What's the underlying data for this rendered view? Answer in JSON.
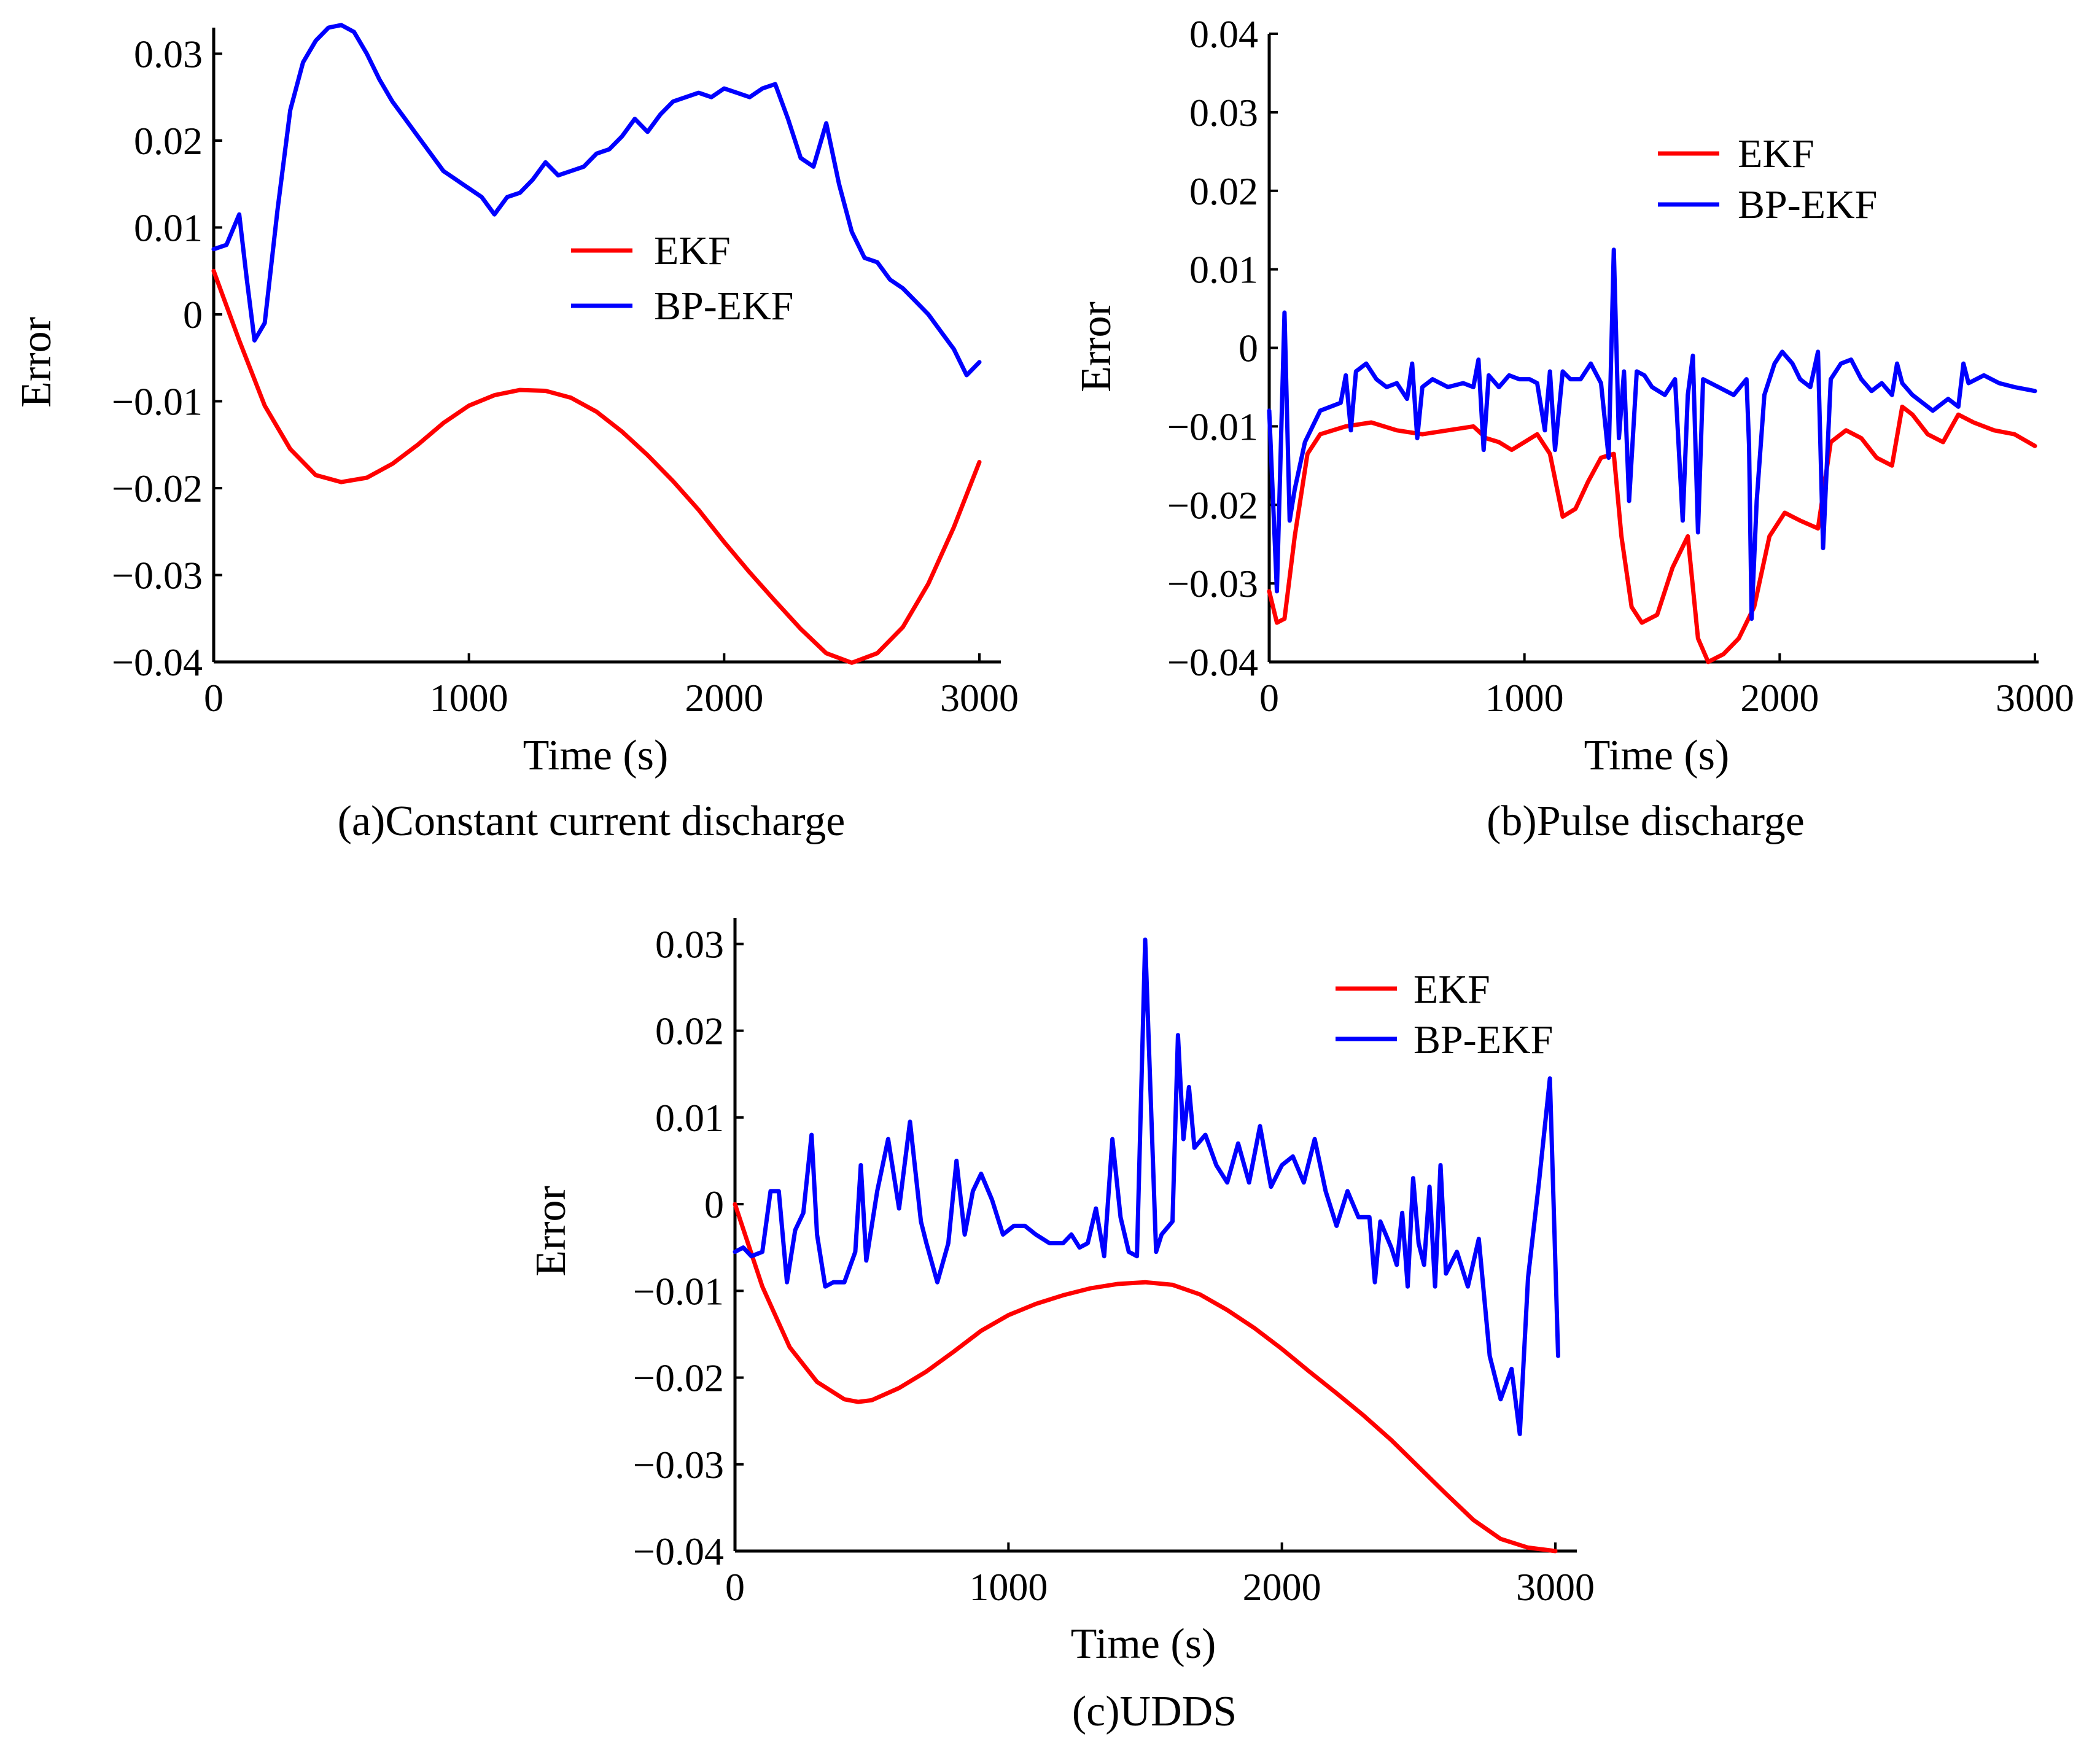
{
  "chart_data": [
    {
      "type": "line",
      "caption": "(a)Constant current discharge",
      "xlabel": "Time (s)",
      "ylabel": "Error",
      "xlim": [
        0,
        3000
      ],
      "ylim": [
        -0.04,
        0.033
      ],
      "xticks": [
        0,
        1000,
        2000,
        3000
      ],
      "xtick_labels": [
        "0",
        "1000",
        "2000",
        "3000"
      ],
      "yticks": [
        0.03,
        0.02,
        0.01,
        0,
        -0.01,
        -0.02,
        -0.03,
        -0.04
      ],
      "ytick_labels": [
        "0.03",
        "0.02",
        "0.01",
        "0",
        "−0.01",
        "−0.02",
        "−0.03",
        "−0.04"
      ],
      "legend_position": "center-right",
      "series": [
        {
          "name": "EKF",
          "color": "#ff0000",
          "x": [
            0,
            100,
            200,
            300,
            400,
            500,
            600,
            700,
            800,
            900,
            1000,
            1100,
            1200,
            1300,
            1400,
            1500,
            1600,
            1700,
            1800,
            1900,
            2000,
            2100,
            2200,
            2300,
            2400,
            2500,
            2600,
            2700,
            2800,
            2900,
            3000
          ],
          "y": [
            0.005,
            -0.003,
            -0.0105,
            -0.0155,
            -0.0185,
            -0.0193,
            -0.0188,
            -0.0172,
            -0.015,
            -0.0125,
            -0.0105,
            -0.0093,
            -0.0087,
            -0.0088,
            -0.0096,
            -0.0112,
            -0.0135,
            -0.0162,
            -0.0192,
            -0.0225,
            -0.0262,
            -0.0297,
            -0.033,
            -0.0362,
            -0.039,
            -0.0401,
            -0.039,
            -0.036,
            -0.031,
            -0.0245,
            -0.017
          ]
        },
        {
          "name": "BP-EKF",
          "color": "#0000ff",
          "x": [
            0,
            50,
            100,
            130,
            160,
            200,
            250,
            300,
            350,
            400,
            450,
            500,
            550,
            600,
            650,
            700,
            750,
            800,
            850,
            900,
            950,
            1000,
            1050,
            1100,
            1150,
            1200,
            1250,
            1300,
            1350,
            1400,
            1450,
            1500,
            1550,
            1600,
            1650,
            1700,
            1750,
            1800,
            1850,
            1900,
            1950,
            2000,
            2050,
            2100,
            2150,
            2200,
            2250,
            2300,
            2350,
            2400,
            2450,
            2500,
            2550,
            2600,
            2650,
            2700,
            2750,
            2800,
            2850,
            2900,
            2950,
            3000
          ],
          "y": [
            0.0075,
            0.008,
            0.0115,
            0.004,
            -0.003,
            -0.001,
            0.012,
            0.0235,
            0.029,
            0.0315,
            0.033,
            0.0333,
            0.0325,
            0.03,
            0.027,
            0.0245,
            0.0225,
            0.0205,
            0.0185,
            0.0165,
            0.0155,
            0.0145,
            0.0135,
            0.0115,
            0.0135,
            0.014,
            0.0155,
            0.0175,
            0.016,
            0.0165,
            0.017,
            0.0185,
            0.019,
            0.0205,
            0.0225,
            0.021,
            0.023,
            0.0245,
            0.025,
            0.0255,
            0.025,
            0.026,
            0.0255,
            0.025,
            0.026,
            0.0265,
            0.0225,
            0.018,
            0.017,
            0.022,
            0.015,
            0.0095,
            0.0065,
            0.006,
            0.004,
            0.003,
            0.0015,
            0.0,
            -0.002,
            -0.004,
            -0.007,
            -0.0055
          ]
        }
      ]
    },
    {
      "type": "line",
      "caption": "(b)Pulse discharge",
      "xlabel": "Time (s)",
      "ylabel": "Error",
      "xlim": [
        0,
        3000
      ],
      "ylim": [
        -0.04,
        0.04
      ],
      "xticks": [
        0,
        1000,
        2000,
        3000
      ],
      "xtick_labels": [
        "0",
        "1000",
        "2000",
        "3000"
      ],
      "yticks": [
        0.04,
        0.03,
        0.02,
        0.01,
        0,
        -0.01,
        -0.02,
        -0.03,
        -0.04
      ],
      "ytick_labels": [
        "0.04",
        "0.03",
        "0.02",
        "0.01",
        "0",
        "−0.01",
        "−0.02",
        "−0.03",
        "−0.04"
      ],
      "legend_position": "top-right",
      "series": [
        {
          "name": "EKF",
          "color": "#ff0000",
          "x": [
            0,
            30,
            60,
            100,
            150,
            200,
            300,
            400,
            500,
            600,
            700,
            800,
            850,
            900,
            950,
            1000,
            1050,
            1100,
            1150,
            1200,
            1250,
            1300,
            1350,
            1380,
            1420,
            1460,
            1520,
            1580,
            1640,
            1680,
            1720,
            1780,
            1840,
            1900,
            1960,
            2020,
            2080,
            2150,
            2200,
            2260,
            2320,
            2380,
            2440,
            2480,
            2520,
            2580,
            2640,
            2700,
            2760,
            2840,
            2920,
            3000
          ],
          "y": [
            -0.031,
            -0.035,
            -0.0345,
            -0.024,
            -0.0135,
            -0.011,
            -0.01,
            -0.0095,
            -0.0105,
            -0.011,
            -0.0105,
            -0.01,
            -0.0115,
            -0.012,
            -0.013,
            -0.012,
            -0.011,
            -0.0135,
            -0.0215,
            -0.0205,
            -0.017,
            -0.014,
            -0.0135,
            -0.024,
            -0.033,
            -0.035,
            -0.034,
            -0.028,
            -0.024,
            -0.037,
            -0.04,
            -0.039,
            -0.037,
            -0.033,
            -0.024,
            -0.021,
            -0.022,
            -0.023,
            -0.012,
            -0.0105,
            -0.0115,
            -0.014,
            -0.015,
            -0.0075,
            -0.0085,
            -0.011,
            -0.012,
            -0.0085,
            -0.0095,
            -0.0105,
            -0.011,
            -0.0125
          ]
        },
        {
          "name": "BP-EKF",
          "color": "#0000ff",
          "x": [
            0,
            30,
            60,
            80,
            100,
            140,
            200,
            280,
            300,
            320,
            340,
            380,
            420,
            460,
            500,
            540,
            560,
            580,
            600,
            640,
            700,
            760,
            800,
            820,
            840,
            860,
            900,
            940,
            980,
            1020,
            1050,
            1080,
            1100,
            1120,
            1150,
            1180,
            1220,
            1260,
            1300,
            1330,
            1350,
            1370,
            1390,
            1410,
            1440,
            1470,
            1500,
            1550,
            1590,
            1620,
            1640,
            1660,
            1680,
            1700,
            1760,
            1820,
            1870,
            1880,
            1890,
            1910,
            1940,
            1980,
            2010,
            2050,
            2080,
            2120,
            2150,
            2170,
            2200,
            2240,
            2280,
            2320,
            2360,
            2400,
            2440,
            2460,
            2480,
            2520,
            2560,
            2600,
            2660,
            2700,
            2720,
            2740,
            2800,
            2860,
            2920,
            3000
          ],
          "y": [
            -0.008,
            -0.031,
            0.0045,
            -0.022,
            -0.018,
            -0.012,
            -0.008,
            -0.007,
            -0.0035,
            -0.0105,
            -0.003,
            -0.002,
            -0.004,
            -0.005,
            -0.0045,
            -0.0065,
            -0.002,
            -0.0115,
            -0.005,
            -0.004,
            -0.005,
            -0.0045,
            -0.005,
            -0.0015,
            -0.013,
            -0.0035,
            -0.005,
            -0.0035,
            -0.004,
            -0.004,
            -0.0045,
            -0.0105,
            -0.003,
            -0.013,
            -0.003,
            -0.004,
            -0.004,
            -0.002,
            -0.0045,
            -0.014,
            0.0125,
            -0.0115,
            -0.003,
            -0.0195,
            -0.003,
            -0.0035,
            -0.005,
            -0.006,
            -0.004,
            -0.022,
            -0.006,
            -0.001,
            -0.0235,
            -0.004,
            -0.005,
            -0.006,
            -0.004,
            -0.0125,
            -0.0345,
            -0.0195,
            -0.006,
            -0.002,
            -0.0005,
            -0.002,
            -0.004,
            -0.005,
            -0.0005,
            -0.0255,
            -0.004,
            -0.002,
            -0.0015,
            -0.004,
            -0.0055,
            -0.0045,
            -0.006,
            -0.002,
            -0.0045,
            -0.006,
            -0.007,
            -0.008,
            -0.0065,
            -0.0075,
            -0.002,
            -0.0045,
            -0.0035,
            -0.0045,
            -0.005,
            -0.0055
          ]
        }
      ]
    },
    {
      "type": "line",
      "caption": "(c)UDDS",
      "xlabel": "Time (s)",
      "ylabel": "Error",
      "xlim": [
        0,
        3000
      ],
      "ylim": [
        -0.04,
        0.033
      ],
      "xticks": [
        0,
        1000,
        2000,
        3000
      ],
      "xtick_labels": [
        "0",
        "1000",
        "2000",
        "3000"
      ],
      "yticks": [
        0.03,
        0.02,
        0.01,
        0,
        -0.01,
        -0.02,
        -0.03,
        -0.04
      ],
      "ytick_labels": [
        "0.03",
        "0.02",
        "0.01",
        "0",
        "−0.01",
        "−0.02",
        "−0.03",
        "−0.04"
      ],
      "legend_position": "top-right",
      "series": [
        {
          "name": "EKF",
          "color": "#ff0000",
          "x": [
            0,
            100,
            200,
            300,
            400,
            450,
            500,
            600,
            700,
            800,
            900,
            1000,
            1100,
            1200,
            1300,
            1400,
            1500,
            1600,
            1700,
            1800,
            1900,
            2000,
            2100,
            2200,
            2300,
            2400,
            2500,
            2600,
            2700,
            2800,
            2900,
            3000
          ],
          "y": [
            0.0,
            -0.0095,
            -0.0165,
            -0.0205,
            -0.0225,
            -0.0228,
            -0.0226,
            -0.0212,
            -0.0193,
            -0.017,
            -0.0146,
            -0.0128,
            -0.0115,
            -0.0105,
            -0.0097,
            -0.0092,
            -0.009,
            -0.0093,
            -0.0104,
            -0.0122,
            -0.0143,
            -0.0167,
            -0.0193,
            -0.0218,
            -0.0244,
            -0.0272,
            -0.0303,
            -0.0334,
            -0.0364,
            -0.0386,
            -0.0396,
            -0.04
          ]
        },
        {
          "name": "BP-EKF",
          "color": "#0000ff",
          "x": [
            0,
            30,
            60,
            100,
            130,
            160,
            190,
            220,
            250,
            280,
            300,
            330,
            360,
            400,
            440,
            460,
            480,
            520,
            560,
            600,
            640,
            680,
            700,
            740,
            780,
            810,
            840,
            870,
            900,
            940,
            980,
            1020,
            1060,
            1100,
            1150,
            1200,
            1230,
            1260,
            1290,
            1320,
            1350,
            1380,
            1410,
            1440,
            1470,
            1500,
            1540,
            1560,
            1600,
            1620,
            1640,
            1660,
            1680,
            1720,
            1760,
            1800,
            1840,
            1880,
            1920,
            1960,
            2000,
            2040,
            2080,
            2120,
            2160,
            2200,
            2240,
            2280,
            2320,
            2340,
            2360,
            2380,
            2400,
            2420,
            2440,
            2460,
            2480,
            2500,
            2520,
            2540,
            2560,
            2580,
            2600,
            2640,
            2680,
            2720,
            2760,
            2800,
            2840,
            2870,
            2900,
            2940,
            2980,
            3010
          ],
          "y": [
            -0.0055,
            -0.005,
            -0.006,
            -0.0055,
            0.0015,
            0.0015,
            -0.009,
            -0.003,
            -0.001,
            0.008,
            -0.0035,
            -0.0095,
            -0.009,
            -0.009,
            -0.0055,
            0.0045,
            -0.0065,
            0.0015,
            0.0075,
            -0.0005,
            0.0095,
            -0.002,
            -0.0045,
            -0.009,
            -0.0045,
            0.005,
            -0.0035,
            0.0015,
            0.0035,
            0.0005,
            -0.0035,
            -0.0025,
            -0.0025,
            -0.0035,
            -0.0045,
            -0.0045,
            -0.0035,
            -0.005,
            -0.0045,
            -0.0005,
            -0.006,
            0.0075,
            -0.0015,
            -0.0055,
            -0.006,
            0.0305,
            -0.0055,
            -0.0035,
            -0.002,
            0.0195,
            0.0075,
            0.0135,
            0.0065,
            0.008,
            0.0045,
            0.0025,
            0.007,
            0.0025,
            0.009,
            0.002,
            0.0045,
            0.0055,
            0.0025,
            0.0075,
            0.0015,
            -0.0025,
            0.0015,
            -0.0015,
            -0.0015,
            -0.009,
            -0.002,
            -0.0035,
            -0.005,
            -0.007,
            -0.001,
            -0.0095,
            0.003,
            -0.0045,
            -0.007,
            0.002,
            -0.0095,
            0.0045,
            -0.008,
            -0.0055,
            -0.0095,
            -0.004,
            -0.0175,
            -0.0225,
            -0.019,
            -0.0265,
            -0.0085,
            0.0025,
            0.0145,
            -0.0175
          ]
        }
      ]
    }
  ]
}
